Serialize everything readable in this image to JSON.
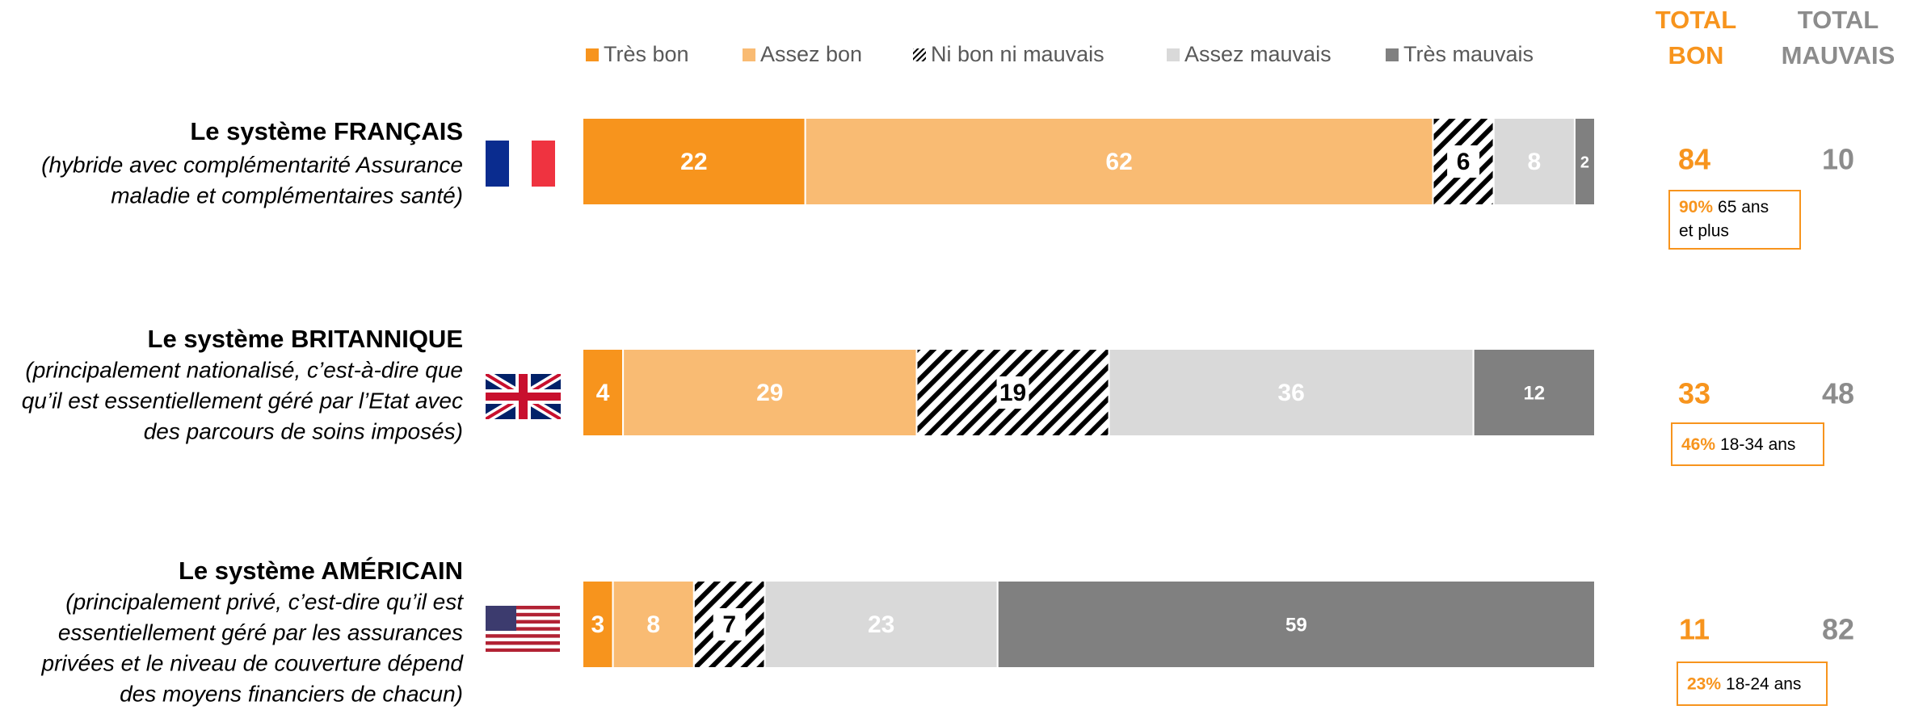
{
  "chart_data": {
    "type": "stacked-barh",
    "categories": [
      "Le système FRANÇAIS",
      "Le système BRITANNIQUE",
      "Le système AMÉRICAIN"
    ],
    "descriptions": [
      [
        "(hybride avec complémentarité Assurance",
        "maladie et complémentaires santé)"
      ],
      [
        "(principalement nationalisé, c’est-à-dire que",
        "qu’il est essentiellement géré par l’Etat avec",
        "des parcours de soins imposés)"
      ],
      [
        "(principalement privé, c’est-dire qu’il est",
        "essentiellement géré par les assurances",
        "privées et le niveau de couverture dépend",
        "des moyens financiers de chacun)"
      ]
    ],
    "xlim": [
      0,
      100
    ],
    "series": [
      {
        "name": "Très bon",
        "color": "#f7941d",
        "values": [
          22,
          4,
          3
        ]
      },
      {
        "name": "Assez bon",
        "color": "#f9bb73",
        "values": [
          62,
          29,
          8
        ]
      },
      {
        "name": "Ni bon ni mauvais",
        "color": "hatch",
        "values": [
          6,
          19,
          7
        ]
      },
      {
        "name": "Assez mauvais",
        "color": "#d9d9d9",
        "values": [
          8,
          36,
          23
        ]
      },
      {
        "name": "Très mauvais",
        "color": "#808080",
        "values": [
          2,
          12,
          59
        ]
      }
    ],
    "totals": [
      {
        "header": [
          "TOTAL",
          "BON"
        ],
        "color": "#f7941d",
        "values": [
          84,
          33,
          11
        ]
      },
      {
        "header": [
          "TOTAL",
          "MAUVAIS"
        ],
        "color": "#8c8c8c",
        "values": [
          10,
          48,
          82
        ]
      }
    ],
    "highlights": {
      "values": [
        90,
        46,
        23
      ],
      "value_labels": [
        "90%",
        "46%",
        "23%"
      ],
      "texts": [
        [
          "65 ans",
          "et plus"
        ],
        [
          "18-34 ans"
        ],
        [
          "18-24 ans"
        ]
      ]
    }
  }
}
